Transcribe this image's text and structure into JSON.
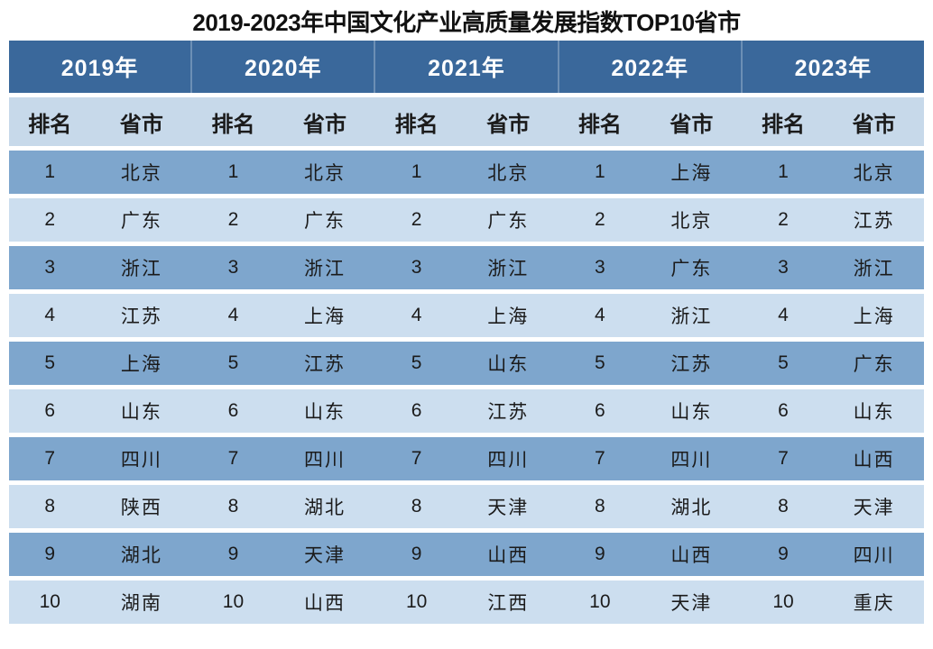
{
  "title": "2019-2023年中国文化产业高质量发展指数TOP10省市",
  "colors": {
    "header_bg": "#3a689b",
    "header_text": "#ffffff",
    "subheader_bg": "#c7d9ea",
    "row_dark": "#7ea6cd",
    "row_light": "#ccdeef",
    "body_text": "#1b1b1b",
    "divider": "#6c8fb5",
    "page_bg": "#ffffff"
  },
  "table": {
    "years": [
      "2019年",
      "2020年",
      "2021年",
      "2022年",
      "2023年"
    ],
    "rank_label": "排名",
    "province_label": "省市",
    "rows": [
      {
        "rank": "1",
        "provinces": [
          "北京",
          "北京",
          "北京",
          "上海",
          "北京"
        ]
      },
      {
        "rank": "2",
        "provinces": [
          "广东",
          "广东",
          "广东",
          "北京",
          "江苏"
        ]
      },
      {
        "rank": "3",
        "provinces": [
          "浙江",
          "浙江",
          "浙江",
          "广东",
          "浙江"
        ]
      },
      {
        "rank": "4",
        "provinces": [
          "江苏",
          "上海",
          "上海",
          "浙江",
          "上海"
        ]
      },
      {
        "rank": "5",
        "provinces": [
          "上海",
          "江苏",
          "山东",
          "江苏",
          "广东"
        ]
      },
      {
        "rank": "6",
        "provinces": [
          "山东",
          "山东",
          "江苏",
          "山东",
          "山东"
        ]
      },
      {
        "rank": "7",
        "provinces": [
          "四川",
          "四川",
          "四川",
          "四川",
          "山西"
        ]
      },
      {
        "rank": "8",
        "provinces": [
          "陕西",
          "湖北",
          "天津",
          "湖北",
          "天津"
        ]
      },
      {
        "rank": "9",
        "provinces": [
          "湖北",
          "天津",
          "山西",
          "山西",
          "四川"
        ]
      },
      {
        "rank": "10",
        "provinces": [
          "湖南",
          "山西",
          "江西",
          "天津",
          "重庆"
        ]
      }
    ]
  },
  "chart_data": {
    "type": "table",
    "title": "2019-2023年中国文化产业高质量发展指数TOP10省市",
    "column_groups": [
      "2019年",
      "2020年",
      "2021年",
      "2022年",
      "2023年"
    ],
    "sub_columns": [
      "排名",
      "省市"
    ],
    "ranks": [
      1,
      2,
      3,
      4,
      5,
      6,
      7,
      8,
      9,
      10
    ],
    "series": [
      {
        "name": "2019年",
        "values": [
          "北京",
          "广东",
          "浙江",
          "江苏",
          "上海",
          "山东",
          "四川",
          "陕西",
          "湖北",
          "湖南"
        ]
      },
      {
        "name": "2020年",
        "values": [
          "北京",
          "广东",
          "浙江",
          "上海",
          "江苏",
          "山东",
          "四川",
          "湖北",
          "天津",
          "山西"
        ]
      },
      {
        "name": "2021年",
        "values": [
          "北京",
          "广东",
          "浙江",
          "上海",
          "山东",
          "江苏",
          "四川",
          "天津",
          "山西",
          "江西"
        ]
      },
      {
        "name": "2022年",
        "values": [
          "上海",
          "北京",
          "广东",
          "浙江",
          "江苏",
          "山东",
          "四川",
          "湖北",
          "山西",
          "天津"
        ]
      },
      {
        "name": "2023年",
        "values": [
          "北京",
          "江苏",
          "浙江",
          "上海",
          "广东",
          "山东",
          "山西",
          "天津",
          "四川",
          "重庆"
        ]
      }
    ]
  }
}
